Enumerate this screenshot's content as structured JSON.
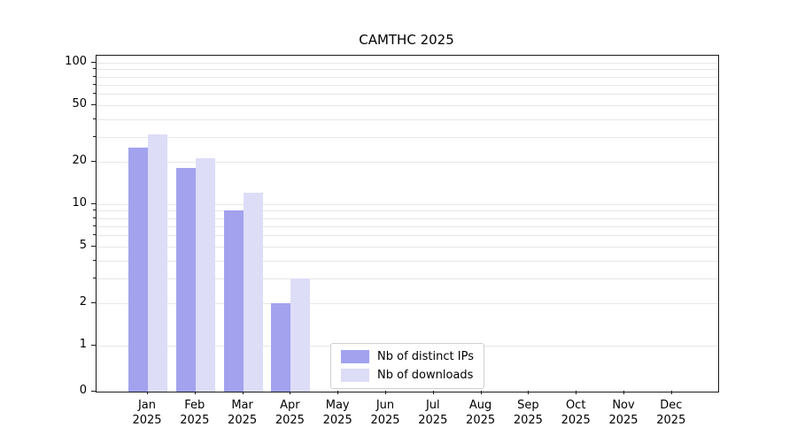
{
  "title": "CAMTHC 2025",
  "chart_data": {
    "type": "bar",
    "title": "CAMTHC 2025",
    "y_scale": "symlog",
    "ylim": [
      0,
      100
    ],
    "y_ticks": [
      0,
      1,
      2,
      5,
      10,
      20,
      50,
      100
    ],
    "grid": true,
    "legend_position": "lower center",
    "year": "2025",
    "months": [
      "Jan",
      "Feb",
      "Mar",
      "Apr",
      "May",
      "Jun",
      "Jul",
      "Aug",
      "Sep",
      "Oct",
      "Nov",
      "Dec"
    ],
    "series": [
      {
        "name": "Nb of distinct IPs",
        "color": "#a2a2ee",
        "values": [
          25,
          18,
          9,
          2,
          0,
          0,
          0,
          0,
          0,
          0,
          0,
          0
        ]
      },
      {
        "name": "Nb of downloads",
        "color": "#ddddf8",
        "values": [
          31,
          21,
          12,
          3,
          0,
          0,
          0,
          0,
          0,
          0,
          0,
          0
        ]
      }
    ]
  },
  "colors": {
    "axis": "#1a1a1a",
    "gridline": "#e7e7e7",
    "legend_border": "#cfcfcf"
  }
}
